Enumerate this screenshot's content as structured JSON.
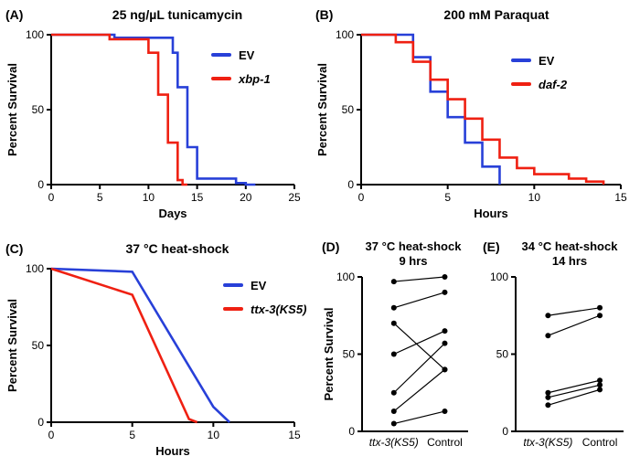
{
  "figure": {
    "background": "#ffffff"
  },
  "colors": {
    "blue": "#2840d8",
    "red": "#ef2012",
    "black": "#000000"
  },
  "panels": [
    {
      "label": "(A)",
      "title": "25 ng/µL tunicamycin"
    },
    {
      "label": "(B)",
      "title": "200 mM Paraquat"
    },
    {
      "label": "(C)",
      "title": "37 °C heat-shock"
    },
    {
      "label": "(D)",
      "title": "37 °C heat-shock",
      "subtitle": "9 hrs"
    },
    {
      "label": "(E)",
      "title": "34 °C heat-shock",
      "subtitle": "14 hrs"
    }
  ],
  "chart_data": [
    {
      "type": "line",
      "style": "survival-step",
      "title": "25 ng/µL tunicamycin",
      "xlabel": "Days",
      "ylabel": "Percent Survival",
      "xlim": [
        0,
        25
      ],
      "ylim": [
        0,
        100
      ],
      "xticks": [
        0,
        5,
        10,
        15,
        20,
        25
      ],
      "yticks": [
        0,
        50,
        100
      ],
      "grid": false,
      "legend_position": "inside-right",
      "series": [
        {
          "name": "EV",
          "color_key": "blue",
          "italic": false,
          "points": [
            [
              0,
              100
            ],
            [
              6.5,
              100
            ],
            [
              6.5,
              98
            ],
            [
              12.5,
              98
            ],
            [
              12.5,
              88
            ],
            [
              13,
              88
            ],
            [
              13,
              65
            ],
            [
              14,
              65
            ],
            [
              14,
              25
            ],
            [
              15,
              25
            ],
            [
              15,
              4
            ],
            [
              19,
              4
            ],
            [
              19,
              1
            ],
            [
              20,
              1
            ],
            [
              20,
              0
            ],
            [
              21,
              0
            ]
          ]
        },
        {
          "name": "xbp-1",
          "color_key": "red",
          "italic": true,
          "points": [
            [
              0,
              100
            ],
            [
              6,
              100
            ],
            [
              6,
              97
            ],
            [
              10,
              97
            ],
            [
              10,
              88
            ],
            [
              11,
              88
            ],
            [
              11,
              60
            ],
            [
              12,
              60
            ],
            [
              12,
              28
            ],
            [
              13,
              28
            ],
            [
              13,
              3
            ],
            [
              13.5,
              3
            ],
            [
              13.5,
              0
            ],
            [
              14,
              0
            ]
          ]
        }
      ]
    },
    {
      "type": "line",
      "style": "survival-step",
      "title": "200 mM Paraquat",
      "xlabel": "Hours",
      "ylabel": "Percent Survival",
      "xlim": [
        0,
        15
      ],
      "ylim": [
        0,
        100
      ],
      "xticks": [
        0,
        5,
        10,
        15
      ],
      "yticks": [
        0,
        50,
        100
      ],
      "grid": false,
      "legend_position": "inside-right",
      "series": [
        {
          "name": "EV",
          "color_key": "blue",
          "italic": false,
          "points": [
            [
              0,
              100
            ],
            [
              3,
              100
            ],
            [
              3,
              85
            ],
            [
              4,
              85
            ],
            [
              4,
              62
            ],
            [
              5,
              62
            ],
            [
              5,
              45
            ],
            [
              6,
              45
            ],
            [
              6,
              28
            ],
            [
              7,
              28
            ],
            [
              7,
              12
            ],
            [
              8,
              12
            ],
            [
              8,
              0
            ]
          ]
        },
        {
          "name": "daf-2",
          "color_key": "red",
          "italic": true,
          "points": [
            [
              0,
              100
            ],
            [
              2,
              100
            ],
            [
              2,
              95
            ],
            [
              3,
              95
            ],
            [
              3,
              82
            ],
            [
              4,
              82
            ],
            [
              4,
              70
            ],
            [
              5,
              70
            ],
            [
              5,
              57
            ],
            [
              6,
              57
            ],
            [
              6,
              44
            ],
            [
              7,
              44
            ],
            [
              7,
              30
            ],
            [
              8,
              30
            ],
            [
              8,
              18
            ],
            [
              9,
              18
            ],
            [
              9,
              11
            ],
            [
              10,
              11
            ],
            [
              10,
              7
            ],
            [
              12,
              7
            ],
            [
              12,
              4
            ],
            [
              13,
              4
            ],
            [
              13,
              2
            ],
            [
              14,
              2
            ],
            [
              14,
              0
            ]
          ]
        }
      ]
    },
    {
      "type": "line",
      "style": "line",
      "title": "37 °C heat-shock",
      "xlabel": "Hours",
      "ylabel": "Percent Survival",
      "xlim": [
        0,
        15
      ],
      "ylim": [
        0,
        100
      ],
      "xticks": [
        0,
        5,
        10,
        15
      ],
      "yticks": [
        0,
        50,
        100
      ],
      "grid": false,
      "legend_position": "inside-right",
      "series": [
        {
          "name": "EV",
          "color_key": "blue",
          "italic": false,
          "points": [
            [
              0,
              100
            ],
            [
              5,
              98
            ],
            [
              10,
              10
            ],
            [
              11,
              0
            ]
          ]
        },
        {
          "name": "ttx-3(KS5)",
          "color_key": "red",
          "italic": true,
          "points": [
            [
              0,
              100
            ],
            [
              5,
              83
            ],
            [
              8.5,
              2
            ],
            [
              9,
              0
            ]
          ]
        }
      ]
    },
    {
      "type": "scatter",
      "style": "paired",
      "title": "37 °C heat-shock 9 hrs",
      "ylabel": "Percent Survival",
      "ylim": [
        0,
        100
      ],
      "yticks": [
        0,
        50,
        100
      ],
      "grid": false,
      "categories": [
        "ttx-3(KS5)",
        "Control"
      ],
      "categories_italic": [
        true,
        false
      ],
      "pairs": [
        [
          97,
          100
        ],
        [
          80,
          90
        ],
        [
          70,
          40
        ],
        [
          50,
          65
        ],
        [
          25,
          57
        ],
        [
          13,
          40
        ],
        [
          5,
          13
        ]
      ]
    },
    {
      "type": "scatter",
      "style": "paired",
      "title": "34 °C heat-shock 14 hrs",
      "ylabel": "",
      "ylim": [
        0,
        100
      ],
      "yticks": [
        0,
        50,
        100
      ],
      "grid": false,
      "categories": [
        "ttx-3(KS5)",
        "Control"
      ],
      "categories_italic": [
        true,
        false
      ],
      "pairs": [
        [
          75,
          80
        ],
        [
          62,
          75
        ],
        [
          25,
          33
        ],
        [
          22,
          30
        ],
        [
          17,
          27
        ]
      ]
    }
  ]
}
